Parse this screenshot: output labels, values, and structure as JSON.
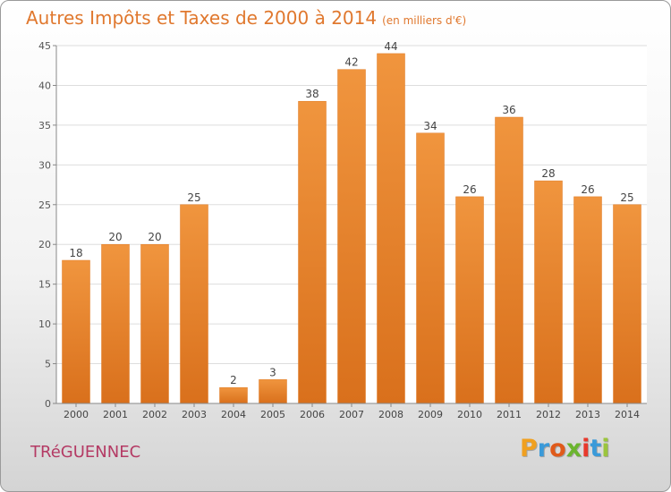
{
  "title": "Autres Impôts et Taxes de 2000 à 2014",
  "title_unit": "(en milliers d'€)",
  "city": "TRéGUENNEC",
  "logo": {
    "letters": [
      "P",
      "r",
      "o",
      "x",
      "i",
      "t",
      "i"
    ],
    "colors": [
      "#f0a020",
      "#3a9ad9",
      "#e05a1a",
      "#6bb52e",
      "#e8392c",
      "#3a9ad9",
      "#9bc53d"
    ]
  },
  "colors": {
    "title": "#e0782e",
    "bar": "#f0953e",
    "bar_dark": "#d9701c",
    "city": "#b43a64"
  },
  "chart_data": {
    "type": "bar",
    "categories": [
      "2000",
      "2001",
      "2002",
      "2003",
      "2004",
      "2005",
      "2006",
      "2007",
      "2008",
      "2009",
      "2010",
      "2011",
      "2012",
      "2013",
      "2014"
    ],
    "values": [
      18,
      20,
      20,
      25,
      2,
      3,
      38,
      42,
      44,
      34,
      26,
      36,
      28,
      26,
      25
    ],
    "ylim": [
      0,
      45
    ],
    "yticks": [
      0,
      5,
      10,
      15,
      20,
      25,
      30,
      35,
      40,
      45
    ],
    "grid": true
  }
}
